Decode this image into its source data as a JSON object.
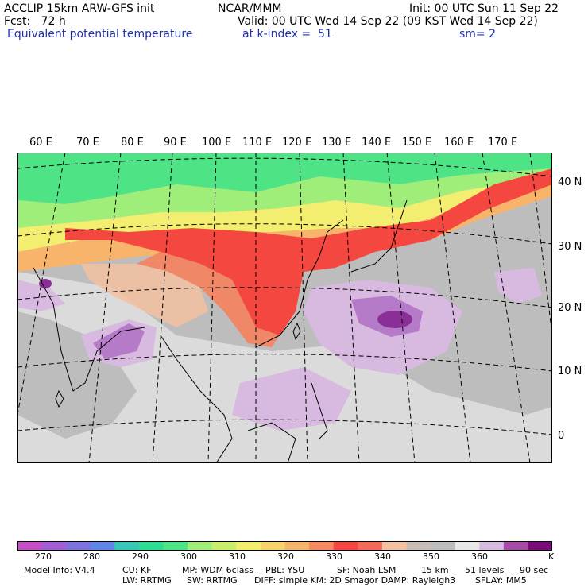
{
  "header": {
    "line1_left": "ACCLIP 15km ARW-GFS init",
    "line1_center": "NCAR/MMM",
    "line1_right": "Init: 00 UTC Sun 11 Sep 22",
    "line2_left": "Fcst:   72 h",
    "line2_right": "Valid: 00 UTC Wed 14 Sep 22 (09 KST Wed 14 Sep 22)",
    "line3_left": "Equivalent potential temperature",
    "line3_center": "at k-index =  51",
    "line3_right": "sm= 2"
  },
  "map": {
    "lon_labels": [
      "60 E",
      "70 E",
      "80 E",
      "90 E",
      "100 E",
      "110 E",
      "120 E",
      "130 E",
      "140 E",
      "150 E",
      "160 E",
      "170 E"
    ],
    "lat_labels": [
      "40 N",
      "30 N",
      "20 N",
      "10 N",
      "0"
    ],
    "colors": {
      "green": "#4ee486",
      "lightgreen": "#9fee7a",
      "yellowgreen": "#c8ee6c",
      "yellow": "#f3ee70",
      "orange": "#f8b46a",
      "red": "#f4473f",
      "salmon": "#f08868",
      "peach": "#f5c1a1",
      "gray": "#bdbdbd",
      "darkgray": "#a8a8a8",
      "white": "#f3f3f3",
      "lilac": "#d8b9e0",
      "purple": "#b57bc8",
      "darkpurple": "#8a2f96"
    }
  },
  "colorbar": {
    "colors": [
      "#c64fc9",
      "#a35ed6",
      "#7d72dd",
      "#5e86e5",
      "#39c6b6",
      "#2edd94",
      "#4ee486",
      "#9fee7a",
      "#c8ee6c",
      "#f3ee70",
      "#f8d26a",
      "#f8b46a",
      "#f58a5e",
      "#f4473f",
      "#f26b55",
      "#f5c1a1",
      "#c9beb6",
      "#bdbdbd",
      "#e8e8e8",
      "#d8b9e0",
      "#a84aa8",
      "#7a0a7a"
    ],
    "labels": [
      "270",
      "280",
      "290",
      "300",
      "310",
      "320",
      "330",
      "340",
      "350",
      "360"
    ],
    "unit": "K"
  },
  "footer": {
    "model_info": "Model Info: V4.4",
    "cu": "CU: KF",
    "mp": "MP: WDM 6class",
    "pbl": "PBL: YSU",
    "sf": "SF: Noah LSM",
    "res": "15 km",
    "levels": "51 levels",
    "dt": "90 sec",
    "lw": "LW: RRTMG",
    "sw": "SW: RRTMG",
    "diff": "DIFF: simple KM: 2D Smagor DAMP: Rayleigh3",
    "sflay": "SFLAY: MM5"
  }
}
